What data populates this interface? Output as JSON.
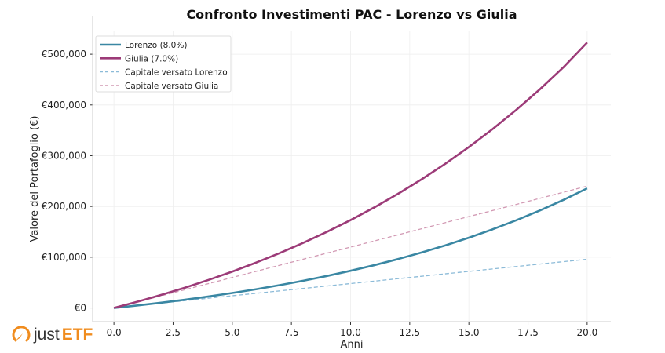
{
  "chart_data": {
    "type": "line",
    "title": "Confronto Investimenti PAC - Lorenzo vs Giulia",
    "xlabel": "Anni",
    "ylabel": "Valore del Portafoglio (€)",
    "xlim": [
      -0.9,
      21
    ],
    "ylim": [
      -27000,
      545000
    ],
    "x_ticks": [
      0,
      2.5,
      5,
      7.5,
      10,
      12.5,
      15,
      17.5,
      20
    ],
    "x_tick_labels": [
      "0.0",
      "2.5",
      "5.0",
      "7.5",
      "10.0",
      "12.5",
      "15.0",
      "17.5",
      "20.0"
    ],
    "y_ticks": [
      0,
      100000,
      200000,
      300000,
      400000,
      500000
    ],
    "y_tick_labels": [
      "€0",
      "€100,000",
      "€200,000",
      "€300,000",
      "€400,000",
      "€500,000"
    ],
    "grid": true,
    "legend_position": "top-left",
    "x": [
      0,
      1,
      2,
      3,
      4,
      5,
      6,
      7,
      8,
      9,
      10,
      11,
      12,
      13,
      14,
      15,
      16,
      17,
      18,
      19,
      20
    ],
    "series": [
      {
        "name": "Lorenzo (8.0%)",
        "color": "#3a87a3",
        "style": "solid",
        "values": [
          0,
          4980,
          10374,
          16214,
          22541,
          29391,
          36810,
          44846,
          53548,
          62973,
          73178,
          84233,
          96205,
          109170,
          123211,
          138418,
          154886,
          172722,
          192038,
          212957,
          235612
        ]
      },
      {
        "name": "Giulia (7.0%)",
        "color": "#9c3b78",
        "style": "solid",
        "values": [
          0,
          12393,
          25681,
          39932,
          55212,
          71597,
          89168,
          108009,
          128213,
          149876,
          173107,
          198017,
          224727,
          253370,
          284081,
          317014,
          352327,
          390193,
          430797,
          474337,
          523000
        ]
      },
      {
        "name": "Capitale versato Lorenzo",
        "color": "#8cbbd8",
        "style": "dashed",
        "values": [
          0,
          4800,
          9600,
          14400,
          19200,
          24000,
          28800,
          33600,
          38400,
          43200,
          48000,
          52800,
          57600,
          62400,
          67200,
          72000,
          76800,
          81600,
          86400,
          91200,
          96000
        ]
      },
      {
        "name": "Capitale versato Giulia",
        "color": "#d29ab4",
        "style": "dashed",
        "values": [
          0,
          12000,
          24000,
          36000,
          48000,
          60000,
          72000,
          84000,
          96000,
          108000,
          120000,
          132000,
          144000,
          156000,
          168000,
          180000,
          192000,
          204000,
          216000,
          228000,
          240000
        ]
      }
    ]
  },
  "logo": {
    "text_left": "just",
    "text_right": "ETF"
  }
}
